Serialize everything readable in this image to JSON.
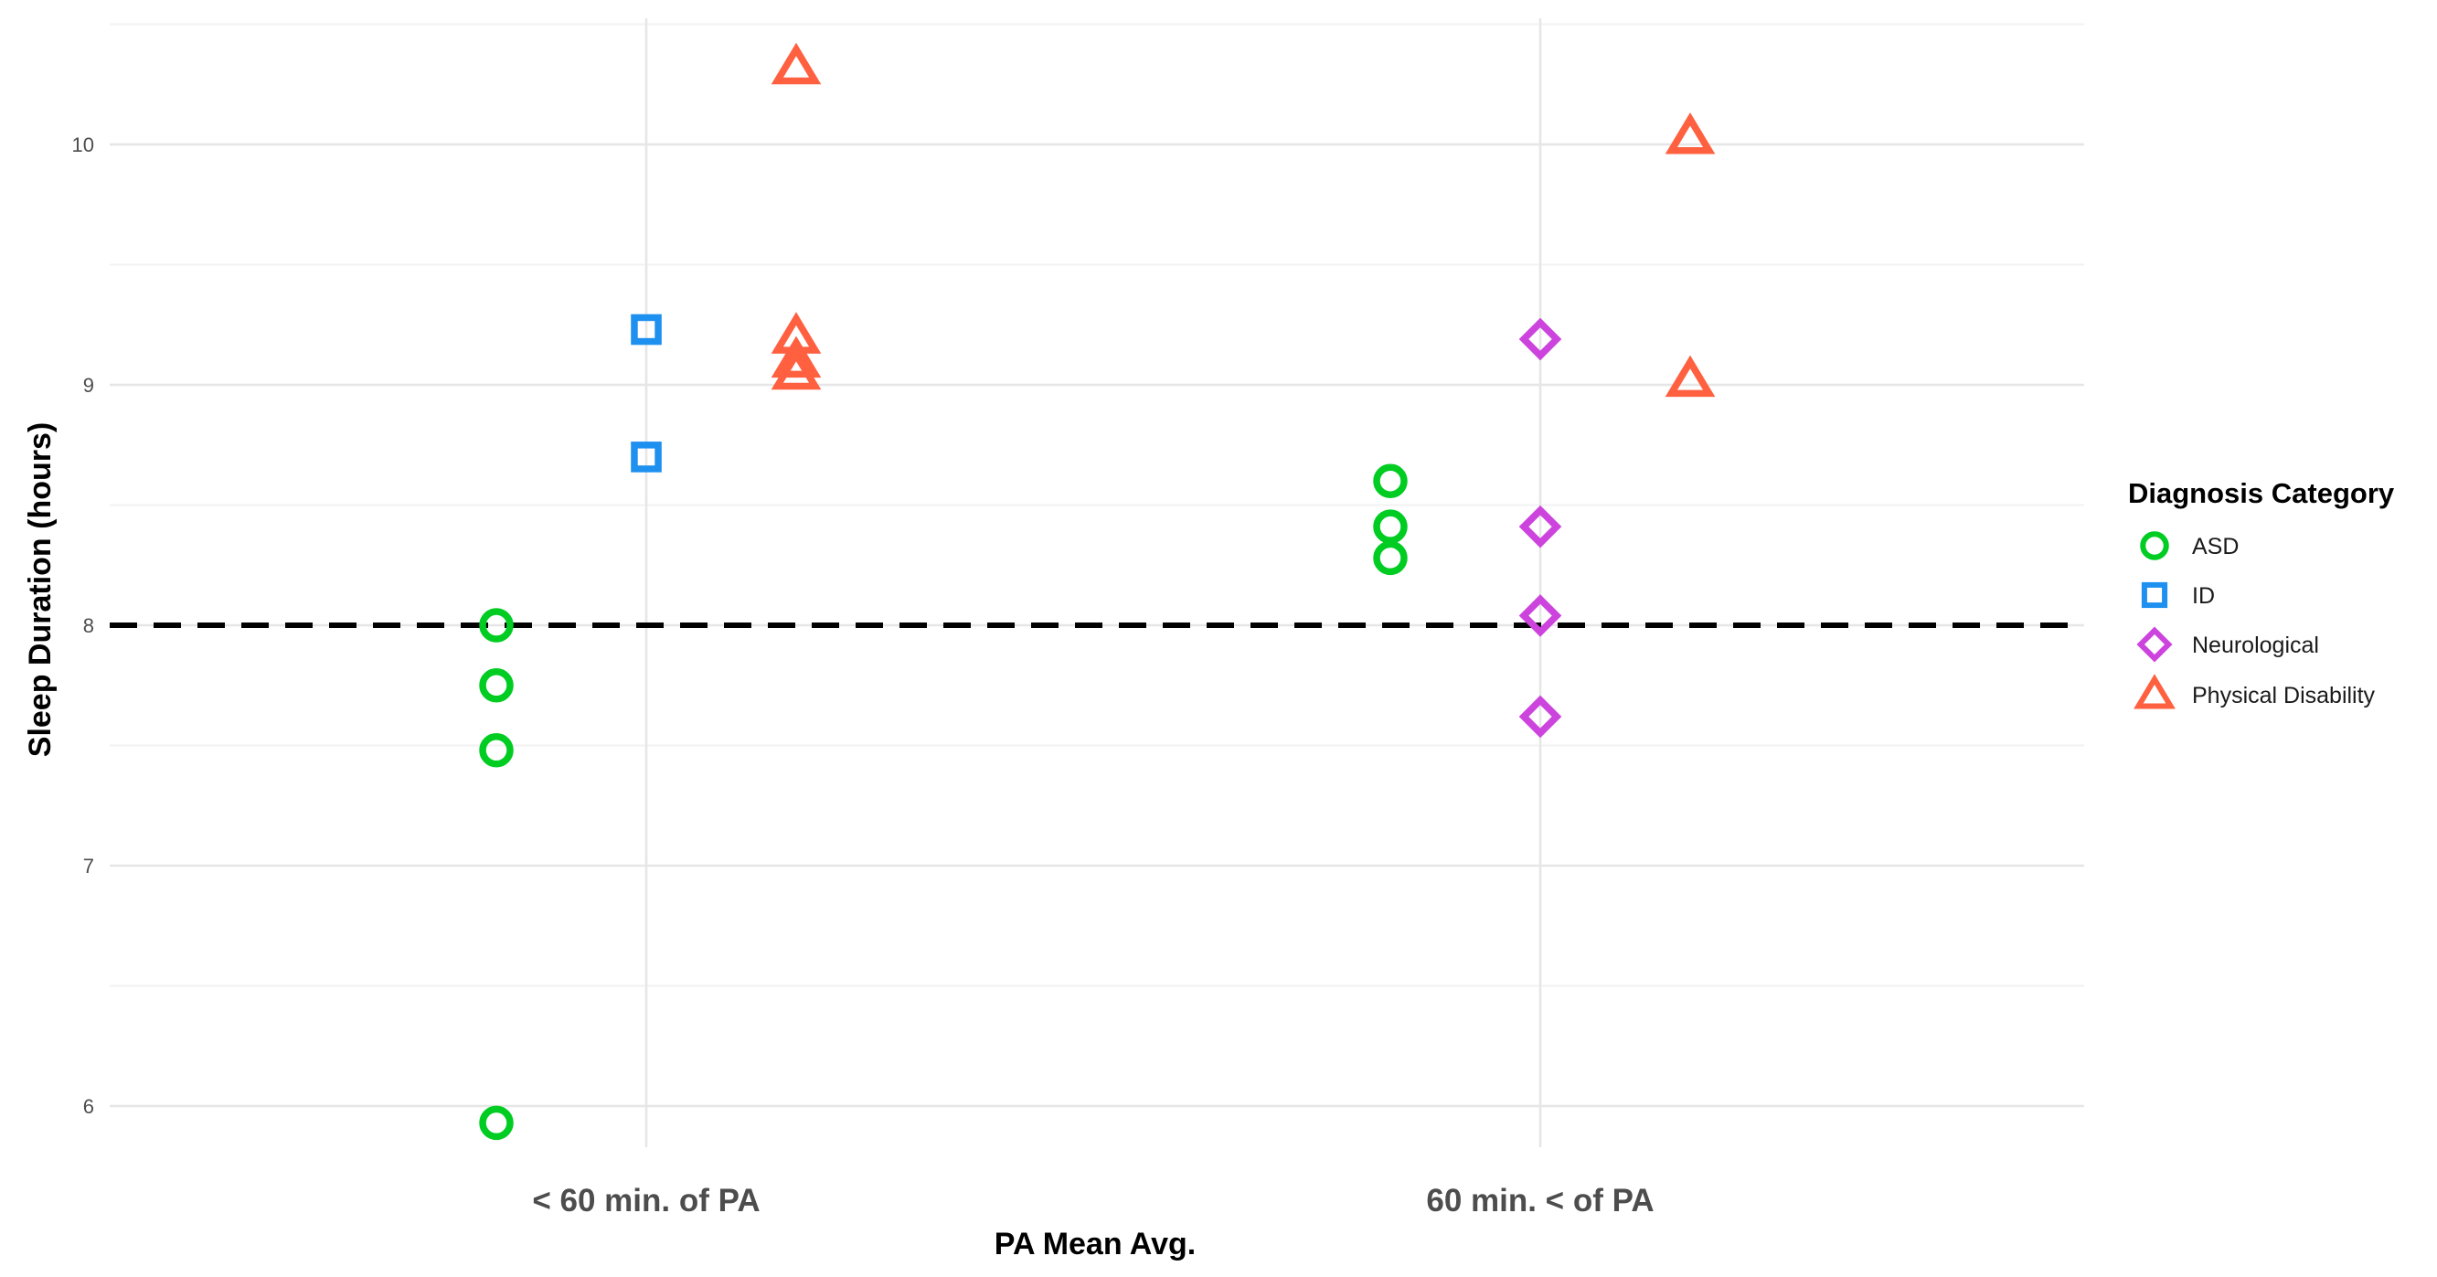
{
  "chart_data": {
    "type": "scatter",
    "title": "",
    "xlabel": "PA Mean Avg.",
    "ylabel": "Sleep Duration (hours)",
    "categories": [
      "< 60 min. of PA",
      "60 min. < of PA"
    ],
    "ylim": [
      5.75,
      10.5
    ],
    "yticks": [
      6,
      7,
      8,
      9,
      10
    ],
    "reference_line": {
      "y": 8,
      "style": "dashed",
      "color": "#000000"
    },
    "grid": true,
    "legend": {
      "title": "Diagnosis Category",
      "position": "right"
    },
    "series": [
      {
        "name": "ASD",
        "shape": "circle",
        "color": "#00CC22",
        "points": [
          {
            "category": "< 60 min. of PA",
            "y": 8.0
          },
          {
            "category": "< 60 min. of PA",
            "y": 7.75
          },
          {
            "category": "< 60 min. of PA",
            "y": 7.48
          },
          {
            "category": "< 60 min. of PA",
            "y": 5.93
          },
          {
            "category": "60 min. < of PA",
            "y": 8.6
          },
          {
            "category": "60 min. < of PA",
            "y": 8.41
          },
          {
            "category": "60 min. < of PA",
            "y": 8.28
          }
        ]
      },
      {
        "name": "ID",
        "shape": "square",
        "color": "#1E90F0",
        "points": [
          {
            "category": "< 60 min. of PA",
            "y": 9.23
          },
          {
            "category": "< 60 min. of PA",
            "y": 8.7
          }
        ]
      },
      {
        "name": "Neurological",
        "shape": "diamond",
        "color": "#CC44DD",
        "points": [
          {
            "category": "60 min. < of PA",
            "y": 9.19
          },
          {
            "category": "60 min. < of PA",
            "y": 8.41
          },
          {
            "category": "60 min. < of PA",
            "y": 8.04
          },
          {
            "category": "60 min. < of PA",
            "y": 7.62
          }
        ]
      },
      {
        "name": "Physical Disability",
        "shape": "triangle",
        "color": "#FF6040",
        "points": [
          {
            "category": "< 60 min. of PA",
            "y": 10.32
          },
          {
            "category": "< 60 min. of PA",
            "y": 9.2
          },
          {
            "category": "< 60 min. of PA",
            "y": 9.1
          },
          {
            "category": "< 60 min. of PA",
            "y": 9.05
          },
          {
            "category": "60 min. < of PA",
            "y": 10.03
          },
          {
            "category": "60 min. < of PA",
            "y": 9.02
          }
        ]
      }
    ]
  }
}
